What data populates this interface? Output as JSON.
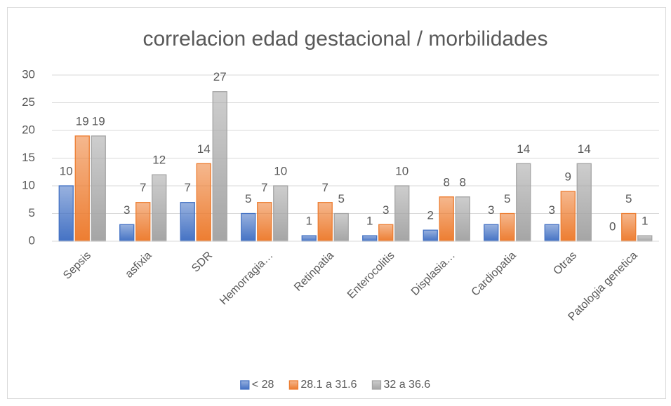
{
  "chart_data": {
    "type": "bar",
    "title": "correlacion edad gestacional / morbilidades",
    "categories": [
      "Sepsis",
      "asfixia",
      "SDR",
      "Hemorragia…",
      "Retinpatia",
      "Enterocolitis",
      "Displasia…",
      "Cardiopatia",
      "Otras",
      "Patologia genetica"
    ],
    "series": [
      {
        "name": "< 28",
        "color": "#4472c4",
        "values": [
          10,
          3,
          7,
          5,
          1,
          1,
          2,
          3,
          3,
          0
        ]
      },
      {
        "name": "28.1 a 31.6",
        "color": "#ed7d31",
        "values": [
          19,
          7,
          14,
          7,
          7,
          3,
          8,
          5,
          9,
          5
        ]
      },
      {
        "name": "32 a 36.6",
        "color": "#a5a5a5",
        "values": [
          19,
          12,
          27,
          10,
          5,
          10,
          8,
          14,
          14,
          1
        ]
      }
    ],
    "ylim": [
      0,
      30
    ],
    "yticks": [
      0,
      5,
      10,
      15,
      20,
      25,
      30
    ],
    "grid": true,
    "legend": "bottom"
  }
}
